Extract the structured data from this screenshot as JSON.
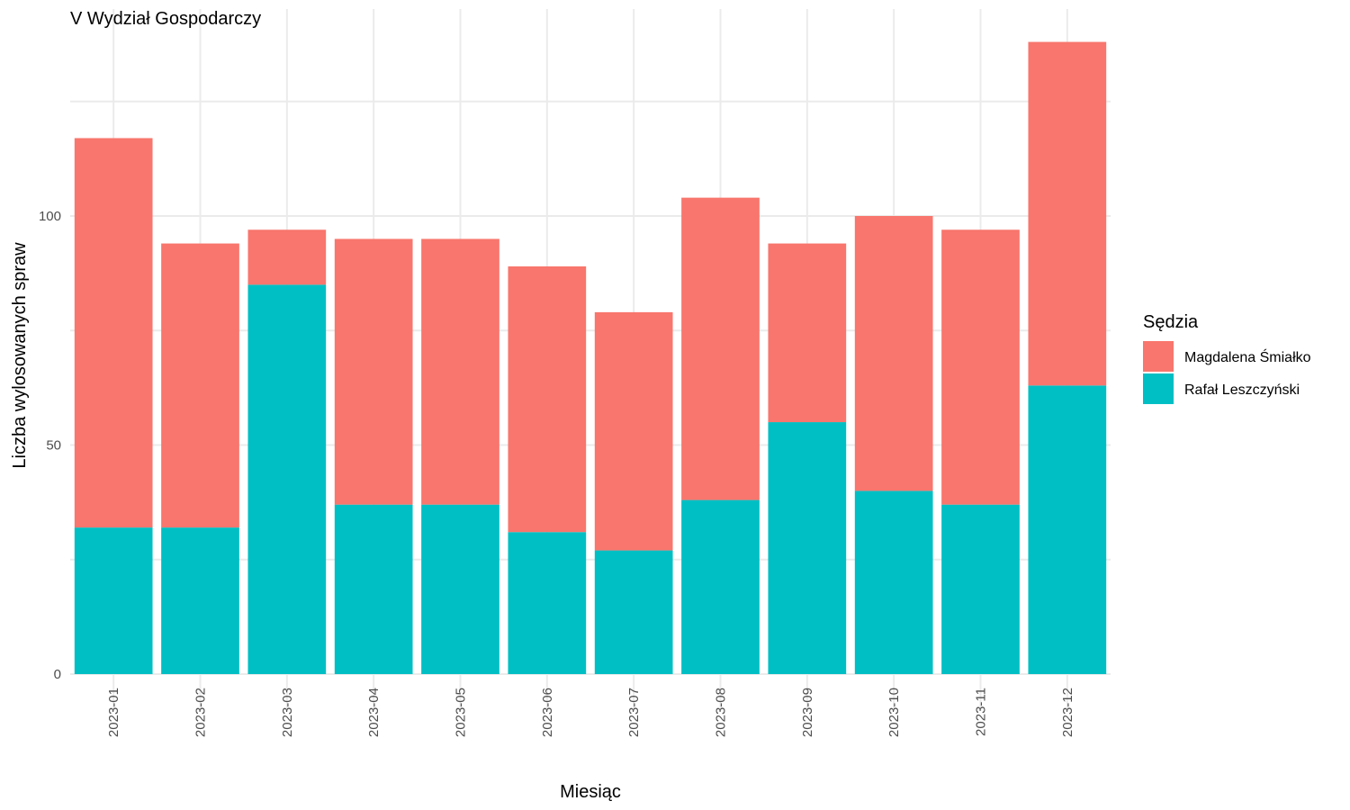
{
  "chart_data": {
    "type": "bar",
    "stacked": true,
    "title": "V Wydział Gospodarczy",
    "xlabel": "Miesiąc",
    "ylabel": "Liczba wylosowanych spraw",
    "categories": [
      "2023-01",
      "2023-02",
      "2023-03",
      "2023-04",
      "2023-05",
      "2023-06",
      "2023-07",
      "2023-08",
      "2023-09",
      "2023-10",
      "2023-11",
      "2023-12"
    ],
    "series": [
      {
        "name": "Rafał Leszczyński",
        "color": "#00BFC4",
        "values": [
          32,
          32,
          85,
          37,
          37,
          31,
          27,
          38,
          55,
          40,
          37,
          63
        ]
      },
      {
        "name": "Magdalena Śmiałko",
        "color": "#F8766D",
        "values": [
          85,
          62,
          12,
          58,
          58,
          58,
          52,
          66,
          39,
          60,
          60,
          75
        ]
      }
    ],
    "ylim": [
      0,
      138
    ],
    "yticks": [
      0,
      50,
      100
    ],
    "grid": true,
    "legend": {
      "title": "Sędzia",
      "position": "right",
      "items": [
        "Magdalena Śmiałko",
        "Rafał Leszczyński"
      ]
    }
  }
}
